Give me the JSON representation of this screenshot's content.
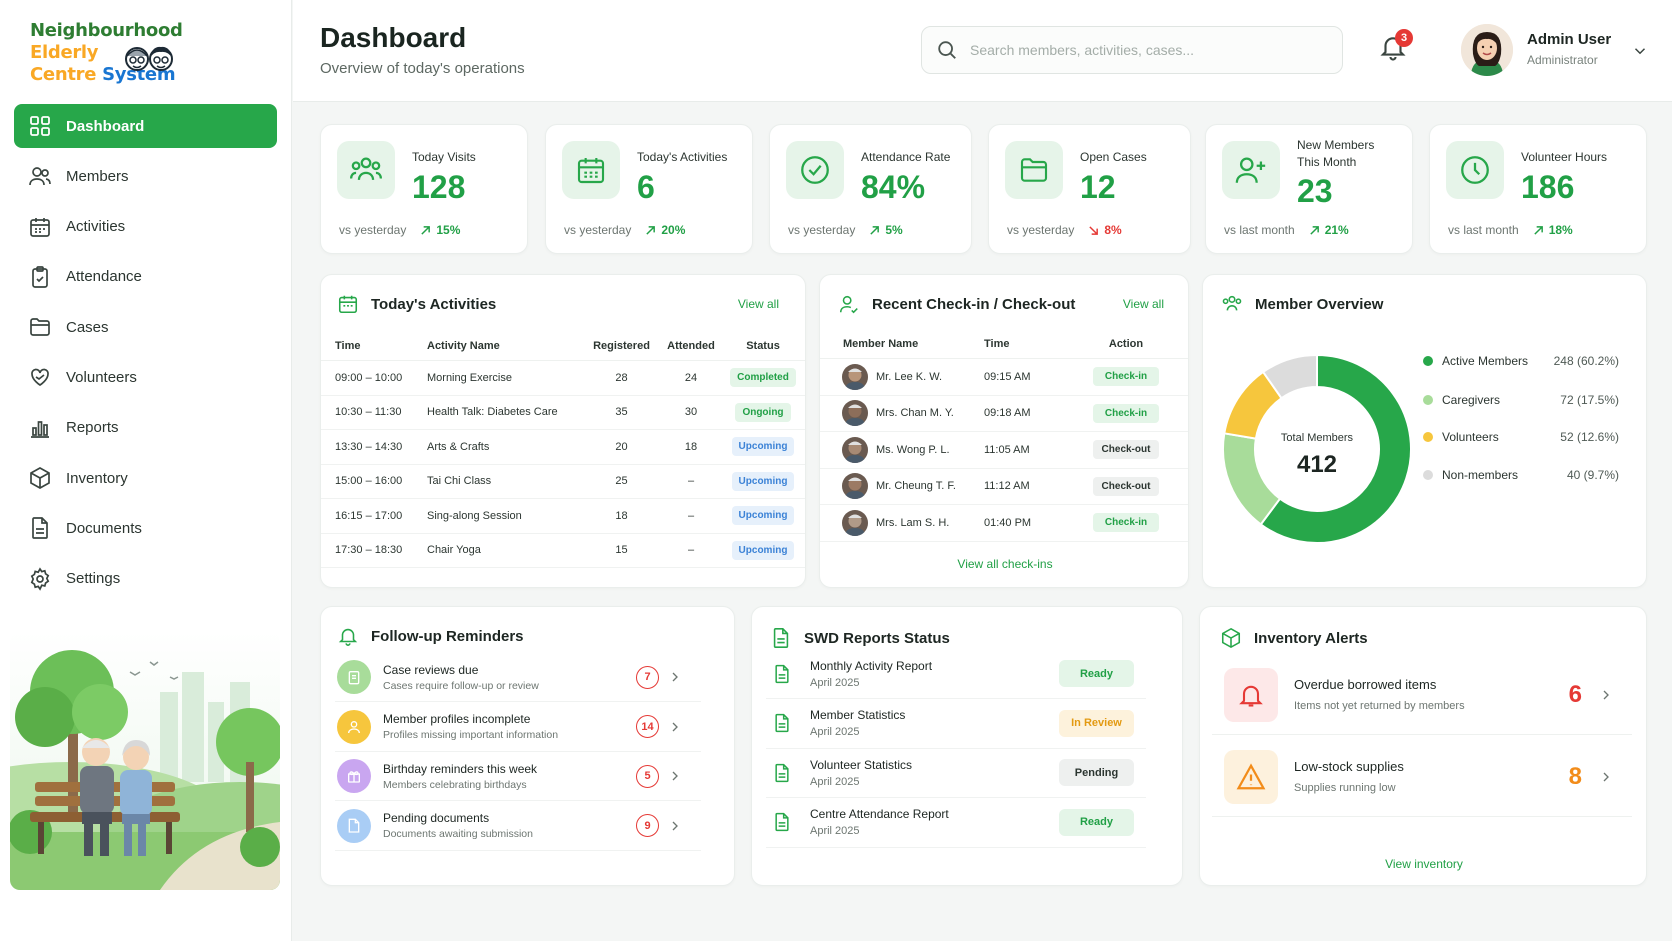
{
  "app": {
    "logo_line1": "Neighbourhood",
    "logo_line2": "Elderly",
    "logo_line3a": "Centre",
    "logo_line3b": "System"
  },
  "sidebar": {
    "items": [
      {
        "label": "Dashboard",
        "icon": "grid-icon",
        "active": true
      },
      {
        "label": "Members",
        "icon": "users-icon"
      },
      {
        "label": "Activities",
        "icon": "calendar-icon"
      },
      {
        "label": "Attendance",
        "icon": "clipboard-check-icon"
      },
      {
        "label": "Cases",
        "icon": "folder-icon"
      },
      {
        "label": "Volunteers",
        "icon": "heart-hand-icon"
      },
      {
        "label": "Reports",
        "icon": "bar-chart-icon"
      },
      {
        "label": "Inventory",
        "icon": "box-icon"
      },
      {
        "label": "Documents",
        "icon": "document-icon"
      },
      {
        "label": "Settings",
        "icon": "gear-icon"
      }
    ]
  },
  "header": {
    "title": "Dashboard",
    "subtitle": "Overview of today's operations",
    "search_placeholder": "Search members, activities, cases...",
    "notifications": "3",
    "user_name": "Admin User",
    "user_role": "Administrator"
  },
  "kpis": [
    {
      "label": "Today Visits",
      "value": "128",
      "foot": "vs yesterday",
      "change": "15%",
      "dir": "up",
      "icon": "group-icon"
    },
    {
      "label": "Today's Activities",
      "value": "6",
      "foot": "vs yesterday",
      "change": "20%",
      "dir": "up",
      "icon": "calendar-icon"
    },
    {
      "label": "Attendance Rate",
      "value": "84%",
      "foot": "vs yesterday",
      "change": "5%",
      "dir": "up",
      "icon": "check-circle-icon"
    },
    {
      "label": "Open Cases",
      "value": "12",
      "foot": "vs yesterday",
      "change": "8%",
      "dir": "down",
      "icon": "folder-icon"
    },
    {
      "label": "New Members This Month",
      "value": "23",
      "foot": "vs last month",
      "change": "21%",
      "dir": "up",
      "icon": "user-plus-icon"
    },
    {
      "label": "Volunteer Hours",
      "value": "186",
      "foot": "vs last month",
      "change": "18%",
      "dir": "up",
      "icon": "clock-icon"
    }
  ],
  "activities": {
    "title": "Today's Activities",
    "view_all": "View all",
    "columns": [
      "Time",
      "Activity Name",
      "Registered",
      "Attended",
      "Status"
    ],
    "rows": [
      {
        "time": "09:00 – 10:00",
        "name": "Morning Exercise",
        "registered": "28",
        "attended": "24",
        "status": "Completed",
        "cls": "completed"
      },
      {
        "time": "10:30 – 11:30",
        "name": "Health Talk: Diabetes Care",
        "registered": "35",
        "attended": "30",
        "status": "Ongoing",
        "cls": "ongoing"
      },
      {
        "time": "13:30 – 14:30",
        "name": "Arts & Crafts",
        "registered": "20",
        "attended": "18",
        "status": "Upcoming",
        "cls": "upcoming"
      },
      {
        "time": "15:00 – 16:00",
        "name": "Tai Chi Class",
        "registered": "25",
        "attended": "–",
        "status": "Upcoming",
        "cls": "upcoming"
      },
      {
        "time": "16:15 – 17:00",
        "name": "Sing-along Session",
        "registered": "18",
        "attended": "–",
        "status": "Upcoming",
        "cls": "upcoming"
      },
      {
        "time": "17:30 – 18:30",
        "name": "Chair Yoga",
        "registered": "15",
        "attended": "–",
        "status": "Upcoming",
        "cls": "upcoming"
      }
    ]
  },
  "checkins": {
    "title": "Recent Check-in / Check-out",
    "view_all": "View all",
    "columns": [
      "Member Name",
      "Time",
      "Action"
    ],
    "rows": [
      {
        "name": "Mr. Lee K. W.",
        "time": "09:15 AM",
        "action": "Check-in",
        "cls": "checkin"
      },
      {
        "name": "Mrs. Chan M. Y.",
        "time": "09:18 AM",
        "action": "Check-in",
        "cls": "checkin"
      },
      {
        "name": "Ms. Wong P. L.",
        "time": "11:05 AM",
        "action": "Check-out",
        "cls": "checkout"
      },
      {
        "name": "Mr. Cheung T. F.",
        "time": "11:12 AM",
        "action": "Check-out",
        "cls": "checkout"
      },
      {
        "name": "Mrs. Lam S. H.",
        "time": "01:40 PM",
        "action": "Check-in",
        "cls": "checkin"
      }
    ],
    "footer_link": "View all check-ins"
  },
  "overview": {
    "title": "Member Overview",
    "center_label": "Total Members",
    "center_value": "412",
    "segments": [
      {
        "name": "Active Members",
        "value": 248,
        "label": "248 (60.2%)",
        "color": "#27a74a"
      },
      {
        "name": "Caregivers",
        "value": 72,
        "label": "72 (17.5%)",
        "color": "#a8dc9a"
      },
      {
        "name": "Volunteers",
        "value": 52,
        "label": "52 (12.6%)",
        "color": "#f6c63d"
      },
      {
        "name": "Non-members",
        "value": 40,
        "label": "40 (9.7%)",
        "color": "#dcdcdc"
      }
    ]
  },
  "reminders": {
    "title": "Follow-up Reminders",
    "items": [
      {
        "title": "Case reviews due",
        "sub": "Cases require follow-up or review",
        "count": "7",
        "bg": "#a8dc9a",
        "icon": "clipboard-icon"
      },
      {
        "title": "Member profiles incomplete",
        "sub": "Profiles missing important information",
        "count": "14",
        "bg": "#f6c63d",
        "icon": "user-icon"
      },
      {
        "title": "Birthday reminders this week",
        "sub": "Members celebrating birthdays",
        "count": "5",
        "bg": "#c9a6f0",
        "icon": "gift-icon"
      },
      {
        "title": "Pending documents",
        "sub": "Documents awaiting submission",
        "count": "9",
        "bg": "#a9cdf5",
        "icon": "document-icon"
      }
    ]
  },
  "reports": {
    "title": "SWD Reports Status",
    "items": [
      {
        "title": "Monthly Activity Report",
        "sub": "April 2025",
        "status": "Ready",
        "cls": "ready"
      },
      {
        "title": "Member Statistics",
        "sub": "April 2025",
        "status": "In Review",
        "cls": "review"
      },
      {
        "title": "Volunteer Statistics",
        "sub": "April 2025",
        "status": "Pending",
        "cls": "pending"
      },
      {
        "title": "Centre Attendance Report",
        "sub": "April 2025",
        "status": "Ready",
        "cls": "ready"
      }
    ]
  },
  "inventory": {
    "title": "Inventory Alerts",
    "items": [
      {
        "title": "Overdue borrowed items",
        "sub": "Items not yet returned by members",
        "count": "6",
        "color": "#e53935",
        "bg": "#fde8e8",
        "icon": "bell-alert-icon"
      },
      {
        "title": "Low-stock supplies",
        "sub": "Supplies running low",
        "count": "8",
        "color": "#f28c1a",
        "bg": "#fdf1dd",
        "icon": "warning-icon"
      }
    ],
    "footer_link": "View inventory"
  }
}
